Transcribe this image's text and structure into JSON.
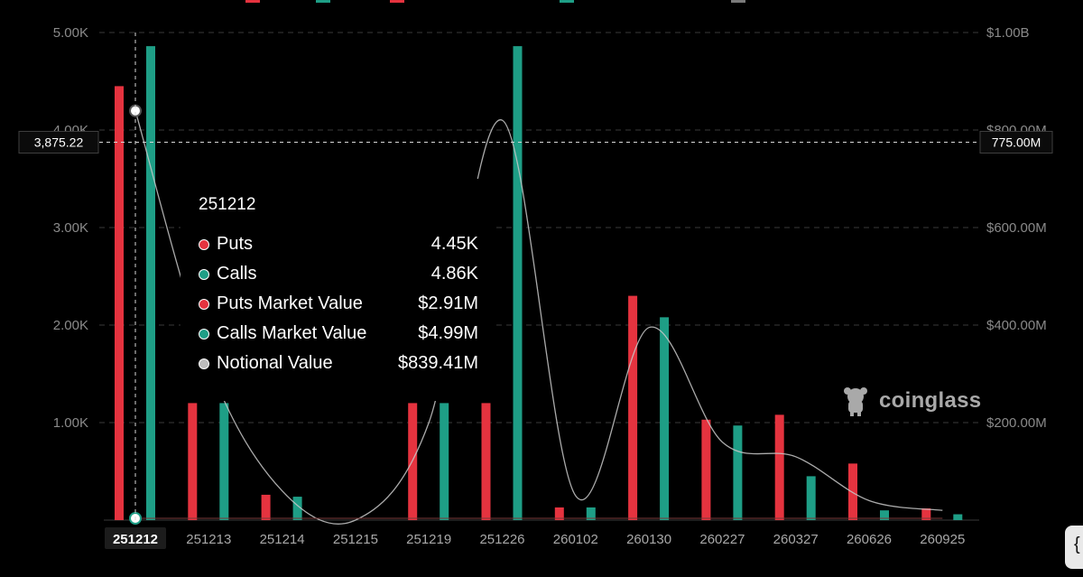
{
  "chart_data": {
    "type": "bar",
    "categories": [
      "251212",
      "251213",
      "251214",
      "251215",
      "251219",
      "251226",
      "260102",
      "260130",
      "260227",
      "260327",
      "260626",
      "260925"
    ],
    "series": [
      {
        "name": "Puts",
        "axis": "left",
        "color": "#e5333f",
        "values": [
          4450,
          1200,
          260,
          0,
          1200,
          1200,
          130,
          2300,
          1030,
          1080,
          580,
          120
        ]
      },
      {
        "name": "Calls",
        "axis": "left",
        "color": "#1e9e86",
        "values": [
          4860,
          1200,
          240,
          0,
          1200,
          4860,
          130,
          2080,
          970,
          450,
          100,
          60
        ]
      },
      {
        "name": "Notional Value",
        "axis": "right",
        "type": "line",
        "color": "#c8c8c8",
        "values": [
          839410000,
          320000000,
          60000000,
          0,
          200000000,
          820000000,
          50000000,
          395000000,
          160000000,
          130000000,
          40000000,
          20000000
        ]
      }
    ],
    "left_axis": {
      "ticks": [
        "5.00K",
        "4.00K",
        "3.00K",
        "2.00K",
        "1.00K"
      ],
      "ylim": [
        0,
        5000
      ]
    },
    "right_axis": {
      "ticks": [
        "$1.00B",
        "$800.00M",
        "$600.00M",
        "$400.00M",
        "$200.00M"
      ],
      "ylim": [
        0,
        1000000000
      ]
    },
    "grid": true,
    "crosshair": {
      "left_value": "3,875.22",
      "right_value": "775.00M",
      "active_category": "251212"
    }
  },
  "tooltip": {
    "title": "251212",
    "rows": [
      {
        "label": "Puts",
        "value": "4.45K",
        "color": "#e5333f"
      },
      {
        "label": "Calls",
        "value": "4.86K",
        "color": "#1e9e86"
      },
      {
        "label": "Puts Market Value",
        "value": "$2.91M",
        "color": "#e5333f"
      },
      {
        "label": "Calls Market Value",
        "value": "$4.99M",
        "color": "#1e9e86"
      },
      {
        "label": "Notional Value",
        "value": "$839.41M",
        "color": "#bdbdbd"
      }
    ]
  },
  "watermark": {
    "text": "coinglass",
    "icon": "coinglass-logo-icon"
  },
  "corner_button": {
    "glyph": "{",
    "icon": "code-brace-icon"
  },
  "colors": {
    "background": "#000000",
    "puts": "#e5333f",
    "calls": "#1e9e86",
    "line": "#c8c8c8"
  }
}
